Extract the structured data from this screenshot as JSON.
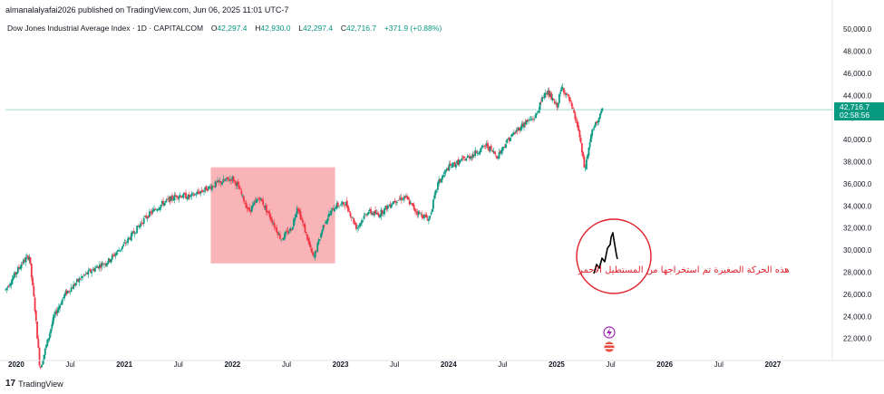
{
  "published_line": "almanalalyafai2026 published on TradingView.com, Jun 06, 2025 11:01 UTC-7",
  "legend": {
    "symbol": "Dow Jones Industrial Average Index · 1D · CAPITALCOM",
    "open_label": "O",
    "open": "42,297.4",
    "high_label": "H",
    "high": "42,930.0",
    "low_label": "L",
    "low": "42,297.4",
    "close_label": "C",
    "close": "42,716.7",
    "change": "+371.9 (+0.88%)"
  },
  "last_price": {
    "value": "42,716.7",
    "countdown": "02:58:56",
    "color": "#089981"
  },
  "annotation_text": "هذه الحركة الصغيرة تم استخراجها من المستطيل الاحمر",
  "footer": {
    "logo": "17",
    "brand": "TradingView"
  },
  "colors": {
    "up": "#089981",
    "down": "#f23645",
    "highlight": "#f7a1a6",
    "circle": "#e0202a"
  },
  "chart_data": {
    "type": "candlestick",
    "x_ticks": [
      "2020",
      "Jul",
      "2021",
      "Jul",
      "2022",
      "Jul",
      "2023",
      "Jul",
      "2024",
      "Jul",
      "2025",
      "Jul",
      "2026",
      "Jul",
      "2027"
    ],
    "y_ticks": [
      "50,000.0",
      "48,000.0",
      "46,000.0",
      "44,000.0",
      "42,000.0",
      "40,000.0",
      "38,000.0",
      "36,000.0",
      "34,000.0",
      "32,000.0",
      "30,000.0",
      "28,000.0",
      "26,000.0",
      "24,000.0",
      "22,000.0"
    ],
    "ylim": [
      20500,
      51000
    ],
    "xlim": [
      2019.9,
      2027.5
    ],
    "series_anchor_points": [
      [
        2019.9,
        26400
      ],
      [
        2020.05,
        28800
      ],
      [
        2020.12,
        29500
      ],
      [
        2020.17,
        25000
      ],
      [
        2020.22,
        19200
      ],
      [
        2020.35,
        24000
      ],
      [
        2020.45,
        26000
      ],
      [
        2020.6,
        27500
      ],
      [
        2020.75,
        28500
      ],
      [
        2020.85,
        29000
      ],
      [
        2021.0,
        30500
      ],
      [
        2021.2,
        33000
      ],
      [
        2021.35,
        34200
      ],
      [
        2021.5,
        35000
      ],
      [
        2021.6,
        34800
      ],
      [
        2021.75,
        35500
      ],
      [
        2021.85,
        36000
      ],
      [
        2022.0,
        36500
      ],
      [
        2022.05,
        35800
      ],
      [
        2022.15,
        33500
      ],
      [
        2022.25,
        34800
      ],
      [
        2022.35,
        33000
      ],
      [
        2022.45,
        31000
      ],
      [
        2022.55,
        32000
      ],
      [
        2022.6,
        34000
      ],
      [
        2022.68,
        31500
      ],
      [
        2022.75,
        29200
      ],
      [
        2022.85,
        32500
      ],
      [
        2022.95,
        34000
      ],
      [
        2023.05,
        34200
      ],
      [
        2023.15,
        32000
      ],
      [
        2023.25,
        33500
      ],
      [
        2023.35,
        33200
      ],
      [
        2023.5,
        34500
      ],
      [
        2023.6,
        34800
      ],
      [
        2023.7,
        33500
      ],
      [
        2023.82,
        32800
      ],
      [
        2023.9,
        36000
      ],
      [
        2024.0,
        37500
      ],
      [
        2024.2,
        38500
      ],
      [
        2024.35,
        39500
      ],
      [
        2024.45,
        38500
      ],
      [
        2024.55,
        40000
      ],
      [
        2024.7,
        41500
      ],
      [
        2024.8,
        42000
      ],
      [
        2024.9,
        44500
      ],
      [
        2025.0,
        43000
      ],
      [
        2025.05,
        44800
      ],
      [
        2025.12,
        43500
      ],
      [
        2025.2,
        41000
      ],
      [
        2025.26,
        37200
      ],
      [
        2025.32,
        40500
      ],
      [
        2025.38,
        41800
      ],
      [
        2025.43,
        42716.7
      ]
    ],
    "highlight_range": {
      "x": [
        2021.8,
        2022.95
      ],
      "y": [
        28800,
        37500
      ]
    }
  }
}
